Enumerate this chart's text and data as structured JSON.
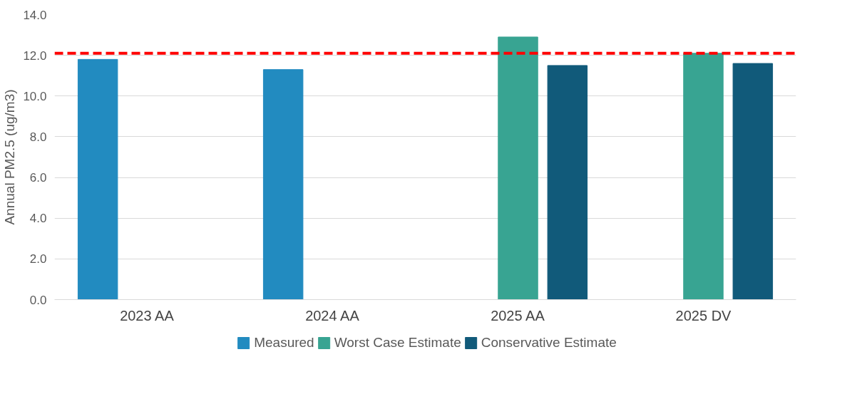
{
  "chart_data": {
    "type": "bar",
    "ylabel": "Annual PM2.5 (ug/m3)",
    "categories": [
      "2023 AA",
      "2024 AA",
      "2025 AA",
      "2025 DV"
    ],
    "series": [
      {
        "name": "Measured",
        "color": "#228bc0",
        "values": [
          11.8,
          11.3,
          null,
          null
        ]
      },
      {
        "name": "Worst Case Estimate",
        "color": "#38a492",
        "values": [
          null,
          null,
          12.9,
          12.1
        ]
      },
      {
        "name": "Conservative Estimate",
        "color": "#115a7a",
        "values": [
          null,
          null,
          11.5,
          11.6
        ]
      }
    ],
    "ylim": [
      0,
      14
    ],
    "yticks": [
      {
        "value": 0,
        "label": "0.0"
      },
      {
        "value": 2,
        "label": "2.0"
      },
      {
        "value": 4,
        "label": "4.0"
      },
      {
        "value": 6,
        "label": "6.0"
      },
      {
        "value": 8,
        "label": "8.0"
      },
      {
        "value": 10,
        "label": "10.0"
      },
      {
        "value": 12,
        "label": "12.0"
      },
      {
        "value": 14,
        "label": "14.0"
      }
    ],
    "grid": "y",
    "legend": "bottom",
    "ref_lines": [
      {
        "axis": "y",
        "value": 12.1,
        "color": "#ff0000",
        "line_style": "dashed"
      }
    ]
  }
}
